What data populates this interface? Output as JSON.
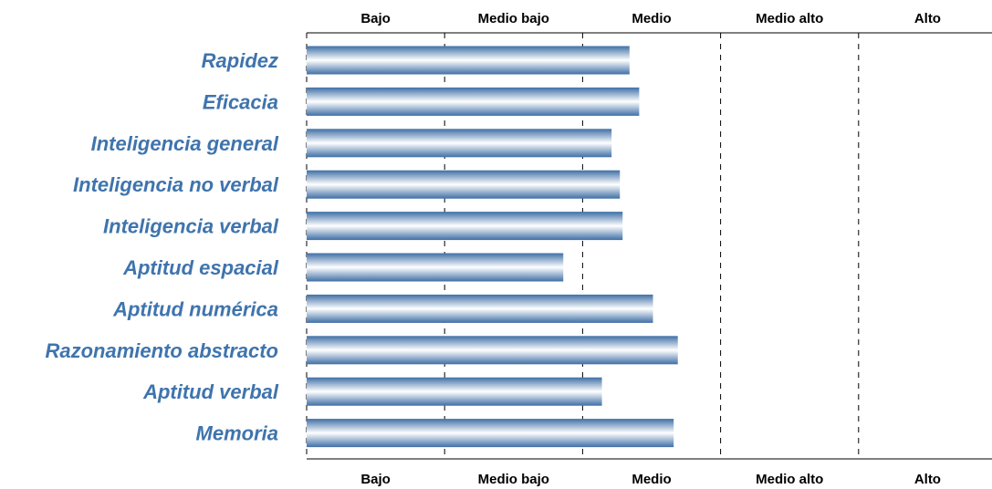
{
  "chart_data": {
    "type": "bar",
    "orientation": "horizontal",
    "categories": [
      "Rapidez",
      "Eficacia",
      "Inteligencia general",
      "Inteligencia no verbal",
      "Inteligencia verbal",
      "Aptitud espacial",
      "Aptitud numérica",
      "Razonamiento abstracto",
      "Aptitud verbal",
      "Memoria"
    ],
    "values": [
      2.34,
      2.41,
      2.21,
      2.27,
      2.29,
      1.86,
      2.51,
      2.69,
      2.14,
      2.66
    ],
    "xlim": [
      0,
      5
    ],
    "zones": [
      "Bajo",
      "Medio bajo",
      "Medio",
      "Medio alto",
      "Alto"
    ],
    "bar_color": "#3f6fa6",
    "label_color": "#3f74ad"
  }
}
